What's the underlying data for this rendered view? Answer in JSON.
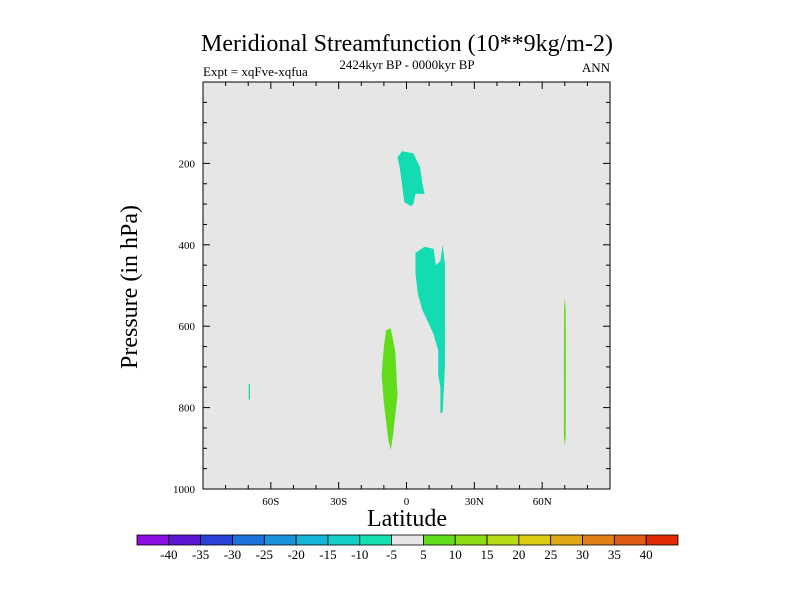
{
  "header": {
    "title": "Meridional Streamfunction (10**9kg/m-2)",
    "experiment": "Expt = xqFve-xqfua",
    "subtitle": "2424kyr BP - 0000kyr BP",
    "season": "ANN"
  },
  "colors": {
    "background_field": "#e6e6e6",
    "teal": "#13dcb3",
    "green": "#60dc1a",
    "frame": "#000000"
  },
  "chart_data": {
    "type": "heatmap",
    "title": "Meridional Streamfunction (10**9kg/m-2)",
    "xlabel": "Latitude",
    "ylabel": "Pressure (in hPa)",
    "xlim": [
      -90,
      90
    ],
    "ylim": [
      1000,
      0
    ],
    "x_ticks": [
      {
        "value": -60,
        "label": "60S"
      },
      {
        "value": -30,
        "label": "30S"
      },
      {
        "value": 0,
        "label": "0"
      },
      {
        "value": 30,
        "label": "30N"
      },
      {
        "value": 60,
        "label": "60N"
      }
    ],
    "y_ticks": [
      {
        "value": 200,
        "label": "200"
      },
      {
        "value": 400,
        "label": "400"
      },
      {
        "value": 600,
        "label": "600"
      },
      {
        "value": 800,
        "label": "800"
      },
      {
        "value": 1000,
        "label": "1000"
      }
    ],
    "regions": [
      {
        "name": "negative-upper-tropics",
        "level": "-10 to -5",
        "color": "#13dcb3",
        "points": [
          [
            -4,
            185
          ],
          [
            -2,
            170
          ],
          [
            3,
            175
          ],
          [
            6,
            210
          ],
          [
            7,
            250
          ],
          [
            8,
            275
          ],
          [
            4,
            275
          ],
          [
            3,
            300
          ],
          [
            2,
            305
          ],
          [
            -1,
            295
          ],
          [
            -2,
            250
          ],
          [
            -3,
            210
          ]
        ]
      },
      {
        "name": "negative-mid-tropics",
        "level": "-10 to -5",
        "color": "#13dcb3",
        "points": [
          [
            4,
            420
          ],
          [
            8,
            405
          ],
          [
            12,
            410
          ],
          [
            13,
            450
          ],
          [
            15,
            440
          ],
          [
            16,
            400
          ],
          [
            17,
            450
          ],
          [
            17,
            600
          ],
          [
            17,
            700
          ],
          [
            16,
            810
          ],
          [
            15,
            815
          ],
          [
            15,
            750
          ],
          [
            14,
            720
          ],
          [
            14,
            660
          ],
          [
            12,
            620
          ],
          [
            10,
            595
          ],
          [
            7,
            560
          ],
          [
            5,
            520
          ],
          [
            4,
            470
          ]
        ]
      },
      {
        "name": "positive-lower-tropics",
        "level": "5 to 10",
        "color": "#60dc1a",
        "points": [
          [
            -9,
            610
          ],
          [
            -7,
            605
          ],
          [
            -5,
            660
          ],
          [
            -4,
            770
          ],
          [
            -5,
            820
          ],
          [
            -6,
            870
          ],
          [
            -7,
            905
          ],
          [
            -8,
            880
          ],
          [
            -10,
            790
          ],
          [
            -11,
            720
          ],
          [
            -10,
            650
          ]
        ]
      },
      {
        "name": "negative-southern-speck",
        "level": "-10 to -5",
        "color": "#13dcb3",
        "points": [
          [
            -69.8,
            742
          ],
          [
            -69.2,
            742
          ],
          [
            -69.2,
            780
          ],
          [
            -69.8,
            780
          ]
        ]
      },
      {
        "name": "positive-northern-sliver",
        "level": "5 to 10",
        "color": "#60dc1a",
        "points": [
          [
            70,
            530
          ],
          [
            70.4,
            560
          ],
          [
            70.5,
            700
          ],
          [
            70.4,
            870
          ],
          [
            70,
            895
          ],
          [
            69.6,
            870
          ],
          [
            69.6,
            700
          ],
          [
            69.7,
            560
          ]
        ]
      }
    ],
    "colorbar": {
      "labels": [
        "-40",
        "-35",
        "-30",
        "-25",
        "-20",
        "-15",
        "-10",
        "-5",
        "5",
        "10",
        "15",
        "20",
        "25",
        "30",
        "35",
        "40"
      ],
      "colors": [
        "#8a0fe0",
        "#5a16d2",
        "#2b42d8",
        "#1b72dc",
        "#1b93dc",
        "#16b4d6",
        "#12cfc8",
        "#14e0b0",
        "#e6e6e6",
        "#60dc1a",
        "#8cdc14",
        "#b8dc14",
        "#dccc14",
        "#e0a814",
        "#e08014",
        "#e05c14",
        "#e02a08"
      ]
    }
  }
}
